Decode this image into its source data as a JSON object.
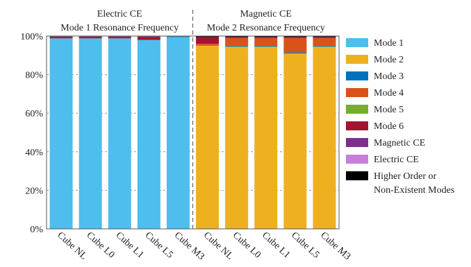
{
  "chart_data": {
    "type": "bar",
    "stacked": true,
    "groups": [
      {
        "title_line1": "Electric CE",
        "title_line2": "Mode 1 Resonance Frequency"
      },
      {
        "title_line1": "Magnetic CE",
        "title_line2": "Mode 2 Resonance Frequency"
      }
    ],
    "categories": [
      "Cube NL",
      "Cube L0",
      "Cube L1",
      "Cube L5",
      "Cube M3",
      "Cube NL",
      "Cube L0",
      "Cube L1",
      "Cube L5",
      "Cube M3"
    ],
    "ylim": [
      0,
      100
    ],
    "yticks": [
      "0%",
      "20%",
      "40%",
      "60%",
      "80%",
      "100%"
    ],
    "grid": true,
    "legend_position": "right",
    "series": [
      {
        "name": "Mode 1",
        "color": "#4DBEEE",
        "values": [
          98.8,
          98.8,
          98.8,
          98.0,
          99.5,
          0,
          0,
          0,
          0,
          0
        ]
      },
      {
        "name": "Mode 2",
        "color": "#EDB120",
        "values": [
          0,
          0,
          0,
          0,
          0,
          95.0,
          94.5,
          94.5,
          91.0,
          94.5
        ]
      },
      {
        "name": "Mode 3",
        "color": "#0072BD",
        "values": [
          0,
          0,
          0,
          0,
          0.3,
          0,
          0.5,
          0.5,
          0.5,
          0.5
        ]
      },
      {
        "name": "Mode 4",
        "color": "#D95319",
        "values": [
          0,
          0,
          0,
          0,
          0,
          1.0,
          4.0,
          4.0,
          7.5,
          4.0
        ]
      },
      {
        "name": "Mode 5",
        "color": "#77AC30",
        "values": [
          0,
          0,
          0,
          0,
          0,
          0,
          0,
          0,
          0,
          0
        ]
      },
      {
        "name": "Mode 6",
        "color": "#A2142F",
        "values": [
          0.8,
          0.8,
          0.8,
          1.5,
          0,
          3.5,
          0.5,
          0.5,
          0.5,
          0.5
        ]
      },
      {
        "name": "Magnetic CE",
        "color": "#7E2F8E",
        "values": [
          0.2,
          0.2,
          0.2,
          0.3,
          0,
          0,
          0,
          0,
          0,
          0
        ]
      },
      {
        "name": "Electric CE",
        "color": "#C77FD9",
        "values": [
          0,
          0,
          0,
          0,
          0,
          0,
          0,
          0,
          0,
          0
        ]
      },
      {
        "name": "Higher Order or Non-Existent Modes",
        "color": "#000000",
        "values": [
          0.2,
          0.2,
          0.2,
          0.2,
          0.2,
          0.5,
          0.5,
          0.5,
          0.5,
          0.5
        ]
      }
    ],
    "legend_lines": [
      [
        "Mode 1"
      ],
      [
        "Mode 2"
      ],
      [
        "Mode 3"
      ],
      [
        "Mode 4"
      ],
      [
        "Mode 5"
      ],
      [
        "Mode 6"
      ],
      [
        "Magnetic CE"
      ],
      [
        "Electric CE"
      ],
      [
        "Higher Order or",
        "Non-Existent Modes"
      ]
    ]
  }
}
